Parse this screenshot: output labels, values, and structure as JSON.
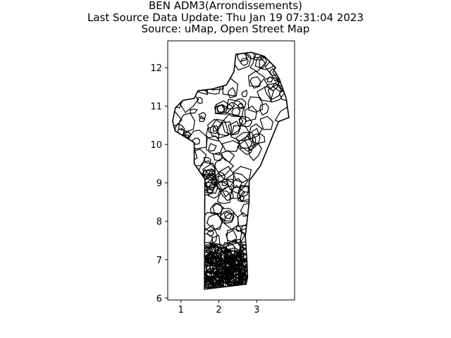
{
  "figure": {
    "title_lines": [
      "BEN ADM3(Arrondissements)",
      "Last Source Data Update: Thu Jan 19 07:31:04 2023",
      "Source: uMap, Open Street Map"
    ]
  },
  "chart_data": {
    "type": "map",
    "title": "BEN ADM3(Arrondissements)\nLast Source Data Update: Thu Jan 19 07:31:04 2023\nSource: uMap, Open Street Map",
    "xlabel": "",
    "ylabel": "",
    "xlim": [
      0.65,
      4.0
    ],
    "ylim": [
      5.95,
      12.7
    ],
    "x_ticks": [
      1,
      2,
      3
    ],
    "y_ticks": [
      6,
      7,
      8,
      9,
      10,
      11,
      12
    ],
    "grid": false,
    "legend": "none",
    "line_color": "#000000",
    "outline_lonlat": [
      [
        1.62,
        6.23
      ],
      [
        2.72,
        6.36
      ],
      [
        2.76,
        6.55
      ],
      [
        2.74,
        7.0
      ],
      [
        2.7,
        7.6
      ],
      [
        2.8,
        8.5
      ],
      [
        2.8,
        9.05
      ],
      [
        3.1,
        9.45
      ],
      [
        3.35,
        10.05
      ],
      [
        3.58,
        10.6
      ],
      [
        3.85,
        10.7
      ],
      [
        3.78,
        11.2
      ],
      [
        3.6,
        11.7
      ],
      [
        3.45,
        11.95
      ],
      [
        3.5,
        12.0
      ],
      [
        3.2,
        12.3
      ],
      [
        2.85,
        12.4
      ],
      [
        2.45,
        12.35
      ],
      [
        2.4,
        11.9
      ],
      [
        2.2,
        11.55
      ],
      [
        1.85,
        11.45
      ],
      [
        1.45,
        11.4
      ],
      [
        1.35,
        11.2
      ],
      [
        1.05,
        11.15
      ],
      [
        0.85,
        10.95
      ],
      [
        0.78,
        10.6
      ],
      [
        0.85,
        10.35
      ],
      [
        1.35,
        10.05
      ],
      [
        1.35,
        9.5
      ],
      [
        1.63,
        9.1
      ],
      [
        1.62,
        6.23
      ]
    ]
  }
}
